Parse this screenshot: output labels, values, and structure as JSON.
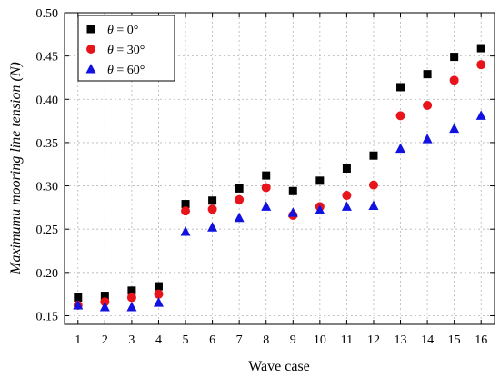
{
  "chart_data": {
    "type": "scatter",
    "xlabel": "Wave case",
    "ylabel": "Maximumu mooring line tension (N)",
    "xlim": [
      0.5,
      16.5
    ],
    "ylim": [
      0.14,
      0.5
    ],
    "x_ticks": [
      1,
      2,
      3,
      4,
      5,
      6,
      7,
      8,
      9,
      10,
      11,
      12,
      13,
      14,
      15,
      16
    ],
    "y_ticks": [
      "0.15",
      "0.20",
      "0.25",
      "0.30",
      "0.35",
      "0.40",
      "0.45",
      "0.50"
    ],
    "grid": true,
    "legend_position": "top-left",
    "series": [
      {
        "name_prefix": "θ",
        "name_suffix": " = 0°",
        "marker": "square",
        "color": "#000000",
        "x": [
          1,
          2,
          3,
          4,
          5,
          6,
          7,
          8,
          9,
          10,
          11,
          12,
          13,
          14,
          15,
          16
        ],
        "values": [
          0.171,
          0.173,
          0.179,
          0.184,
          0.279,
          0.283,
          0.297,
          0.312,
          0.294,
          0.306,
          0.32,
          0.335,
          0.414,
          0.429,
          0.449,
          0.459
        ]
      },
      {
        "name_prefix": "θ",
        "name_suffix": " = 30°",
        "marker": "circle",
        "color": "#e8141c",
        "x": [
          1,
          2,
          3,
          4,
          5,
          6,
          7,
          8,
          9,
          10,
          11,
          12,
          13,
          14,
          15,
          16
        ],
        "values": [
          0.162,
          0.166,
          0.171,
          0.175,
          0.271,
          0.273,
          0.284,
          0.298,
          0.266,
          0.276,
          0.289,
          0.301,
          0.381,
          0.393,
          0.422,
          0.44
        ]
      },
      {
        "name_prefix": "θ",
        "name_suffix": " = 60°",
        "marker": "triangle",
        "color": "#1212e0",
        "x": [
          1,
          2,
          3,
          4,
          5,
          6,
          7,
          8,
          9,
          10,
          11,
          12,
          13,
          14,
          15,
          16
        ],
        "values": [
          0.162,
          0.16,
          0.16,
          0.165,
          0.247,
          0.252,
          0.263,
          0.276,
          0.269,
          0.272,
          0.276,
          0.277,
          0.343,
          0.354,
          0.366,
          0.381
        ]
      }
    ]
  }
}
